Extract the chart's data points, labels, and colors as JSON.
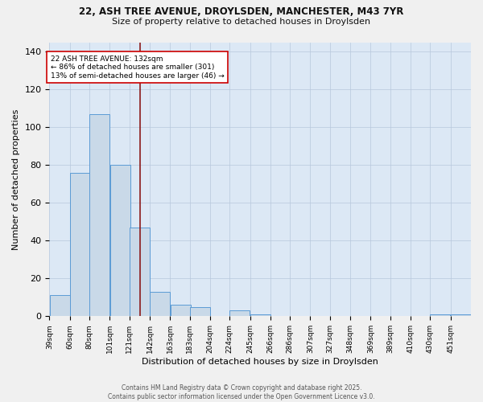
{
  "title_line1": "22, ASH TREE AVENUE, DROYLSDEN, MANCHESTER, M43 7YR",
  "title_line2": "Size of property relative to detached houses in Droylsden",
  "xlabel": "Distribution of detached houses by size in Droylsden",
  "ylabel": "Number of detached properties",
  "bar_labels": [
    "39sqm",
    "60sqm",
    "80sqm",
    "101sqm",
    "121sqm",
    "142sqm",
    "163sqm",
    "183sqm",
    "204sqm",
    "224sqm",
    "245sqm",
    "266sqm",
    "286sqm",
    "307sqm",
    "327sqm",
    "348sqm",
    "369sqm",
    "389sqm",
    "410sqm",
    "430sqm",
    "451sqm"
  ],
  "bar_heights": [
    11,
    76,
    107,
    80,
    47,
    13,
    6,
    5,
    0,
    3,
    1,
    0,
    0,
    0,
    0,
    0,
    0,
    0,
    0,
    1,
    1
  ],
  "bar_color": "#c9d9e8",
  "bar_edge_color": "#5b9bd5",
  "vline_x_index": 5,
  "vline_color": "#8b1a1a",
  "ylim": [
    0,
    145
  ],
  "yticks": [
    0,
    20,
    40,
    60,
    80,
    100,
    120,
    140
  ],
  "annotation_title": "22 ASH TREE AVENUE: 132sqm",
  "annotation_line2": "← 86% of detached houses are smaller (301)",
  "annotation_line3": "13% of semi-detached houses are larger (46) →",
  "annotation_box_color": "#ffffff",
  "annotation_box_edge": "#cc0000",
  "footer_line1": "Contains HM Land Registry data © Crown copyright and database right 2025.",
  "footer_line2": "Contains public sector information licensed under the Open Government Licence v3.0.",
  "fig_bg_color": "#f0f0f0",
  "plot_bg_color": "#dce8f5",
  "bin_width": 21,
  "vline_x": 132
}
